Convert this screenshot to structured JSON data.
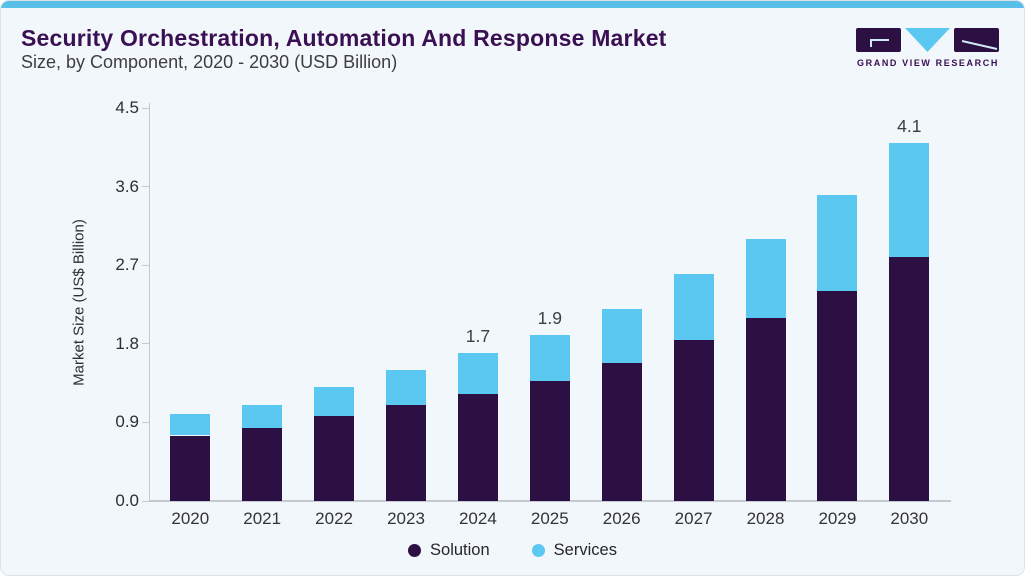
{
  "header": {
    "title": "Security Orchestration, Automation And Response Market",
    "subtitle": "Size, by Component, 2020 - 2030 (USD Billion)"
  },
  "logo": {
    "text": "GRAND VIEW RESEARCH"
  },
  "colors": {
    "solution": "#2d1043",
    "services": "#5bc8f2",
    "accent_bar": "#58c0e8",
    "title_text": "#3b1053",
    "card_background": "#f1f7fb",
    "axis_line": "#c2cad0"
  },
  "chart_data": {
    "type": "bar",
    "stacked": true,
    "title": "Security Orchestration, Automation And Response Market Size, by Component, 2020 - 2030 (USD Billion)",
    "xlabel": "",
    "ylabel": "Market Size (US$ Billion)",
    "ylim": [
      0,
      4.5
    ],
    "ytick_labels": [
      "0.0",
      "0.9",
      "1.8",
      "2.7",
      "3.6",
      "4.5"
    ],
    "grid": false,
    "legend_position": "bottom",
    "categories": [
      "2020",
      "2021",
      "2022",
      "2023",
      "2024",
      "2025",
      "2026",
      "2027",
      "2028",
      "2029",
      "2030"
    ],
    "series": [
      {
        "name": "Solution",
        "color": "#2d1043",
        "values": [
          0.75,
          0.84,
          0.97,
          1.1,
          1.23,
          1.37,
          1.58,
          1.84,
          2.1,
          2.41,
          2.79
        ]
      },
      {
        "name": "Services",
        "color": "#5bc8f2",
        "values": [
          0.25,
          0.26,
          0.33,
          0.4,
          0.47,
          0.53,
          0.62,
          0.76,
          0.9,
          1.09,
          1.31
        ]
      }
    ],
    "totals": [
      1.0,
      1.1,
      1.3,
      1.5,
      1.7,
      1.9,
      2.2,
      2.6,
      3.0,
      3.5,
      4.1
    ],
    "bar_labels": [
      "",
      "",
      "",
      "",
      "1.7",
      "1.9",
      "",
      "",
      "",
      "",
      "4.1"
    ]
  }
}
